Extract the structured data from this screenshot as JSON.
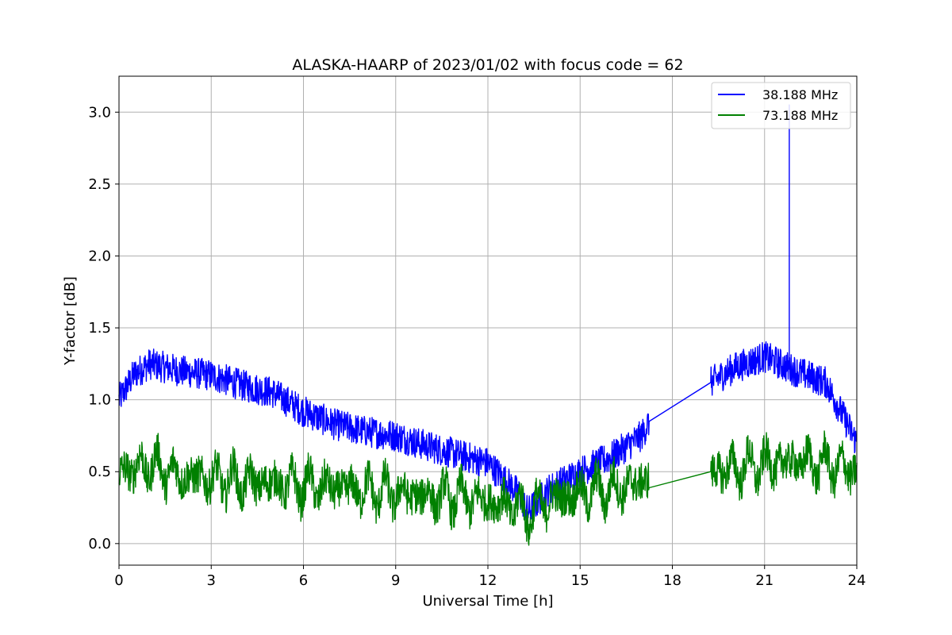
{
  "chart_data": {
    "type": "line",
    "title": "ALASKA-HAARP of 2023/01/02 with focus code = 62",
    "xlabel": "Universal Time [h]",
    "ylabel": "Y-factor [dB]",
    "xlim": [
      0,
      24
    ],
    "ylim": [
      -0.15,
      3.25
    ],
    "xticks": [
      0,
      3,
      6,
      9,
      12,
      15,
      18,
      21,
      24
    ],
    "yticks": [
      0.0,
      0.5,
      1.0,
      1.5,
      2.0,
      2.5,
      3.0
    ],
    "xtick_labels": [
      "0",
      "3",
      "6",
      "9",
      "12",
      "15",
      "18",
      "21",
      "24"
    ],
    "ytick_labels": [
      "0.0",
      "0.5",
      "1.0",
      "1.5",
      "2.0",
      "2.5",
      "3.0"
    ],
    "grid": true,
    "legend_position": "top-right",
    "series": [
      {
        "name": "38.188 MHz",
        "color": "#0000ff",
        "x": [
          0,
          0.5,
          1,
          2,
          3,
          4,
          5,
          6,
          7,
          8,
          9,
          10,
          11,
          12,
          13,
          13.3,
          14,
          15,
          16,
          17,
          17.25,
          19.25,
          20,
          21,
          22,
          23,
          24
        ],
        "y": [
          1.0,
          1.18,
          1.25,
          1.2,
          1.17,
          1.1,
          1.05,
          0.92,
          0.83,
          0.78,
          0.75,
          0.68,
          0.62,
          0.56,
          0.35,
          0.22,
          0.38,
          0.5,
          0.6,
          0.75,
          0.85,
          1.12,
          1.22,
          1.3,
          1.2,
          1.12,
          0.7
        ],
        "gap": [
          17.25,
          19.25
        ],
        "spike": {
          "x": 21.8,
          "y": 3.05
        }
      },
      {
        "name": "73.188 MHz",
        "color": "#008000",
        "x": [
          0,
          1,
          2,
          3,
          4,
          5,
          6,
          7,
          8,
          9,
          10,
          11,
          12,
          13,
          13.3,
          14,
          15,
          16,
          17,
          17.25,
          19.25,
          20,
          21,
          22,
          23,
          24
        ],
        "y": [
          0.5,
          0.55,
          0.47,
          0.45,
          0.43,
          0.42,
          0.4,
          0.39,
          0.37,
          0.35,
          0.33,
          0.32,
          0.3,
          0.25,
          0.2,
          0.3,
          0.35,
          0.38,
          0.42,
          0.5,
          0.5,
          0.52,
          0.55,
          0.57,
          0.55,
          0.5
        ],
        "gap": [
          17.25,
          19.25
        ]
      }
    ]
  }
}
